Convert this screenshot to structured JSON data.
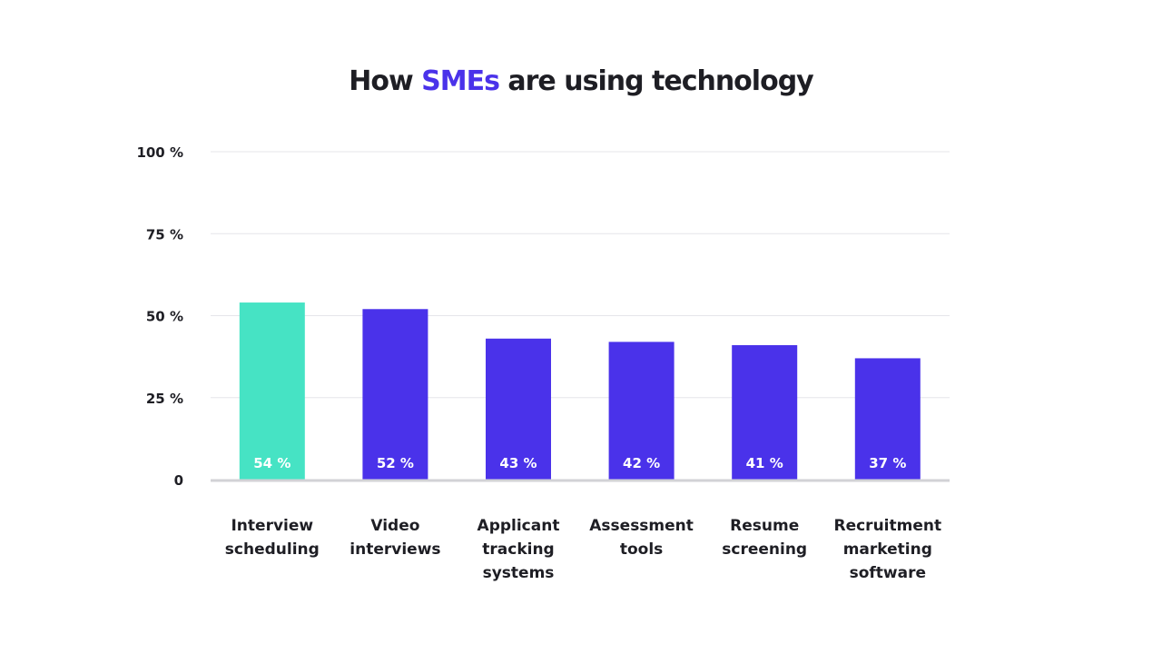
{
  "title": {
    "before": "How ",
    "highlight": "SMEs",
    "after": " are using technology"
  },
  "colors": {
    "accent": "#4a32ea",
    "highlight_bar": "#46e3c4",
    "bar": "#4a32ea",
    "text": "#1e1e24",
    "grid": "#e6e6ea",
    "axis": "#d2d2d6"
  },
  "chart_data": {
    "type": "bar",
    "categories": [
      [
        "Interview",
        "scheduling"
      ],
      [
        "Video",
        "interviews"
      ],
      [
        "Applicant",
        "tracking",
        "systems"
      ],
      [
        "Assessment",
        "tools"
      ],
      [
        "Resume",
        "screening"
      ],
      [
        "Recruitment",
        "marketing",
        "software"
      ]
    ],
    "values": [
      54,
      52,
      43,
      42,
      41,
      37
    ],
    "value_labels": [
      "54 %",
      "52 %",
      "43 %",
      "42 %",
      "41 %",
      "37 %"
    ],
    "highlight_index": 0,
    "ylim": [
      0,
      100
    ],
    "yticks": [
      0,
      25,
      50,
      75,
      100
    ],
    "ytick_labels": [
      "0",
      "25 %",
      "50 %",
      "75 %",
      "100 %"
    ],
    "grid": true
  }
}
